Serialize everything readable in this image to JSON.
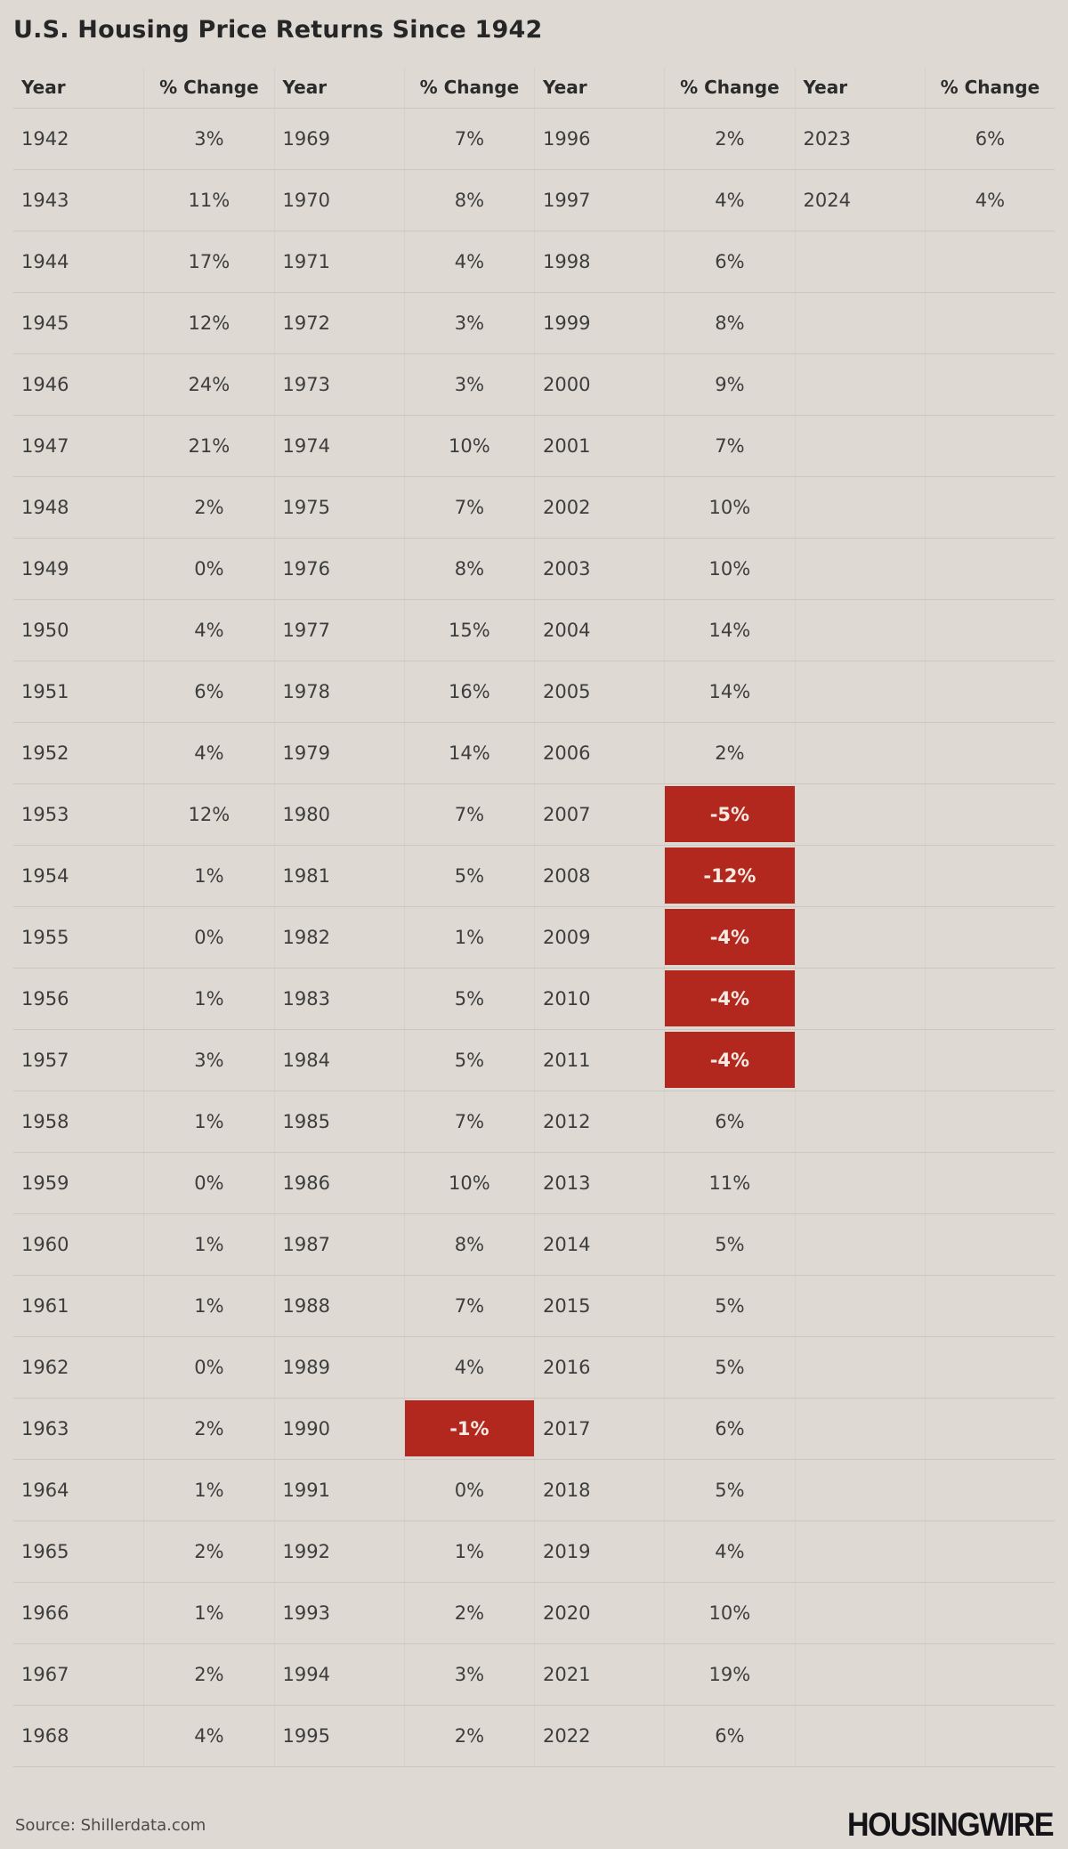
{
  "title": "U.S. Housing Price Returns Since 1942",
  "colors": {
    "background": "#dedad3",
    "negative_cell_bg": "#b2281e",
    "negative_cell_text": "#f6ebe4",
    "text": "#3d3d3d",
    "header_text": "#2b2b2b",
    "row_divider": "#cbc8c1",
    "column_divider": "#d5d2cb"
  },
  "footer": {
    "source": "Source: Shillerdata.com",
    "logo": "HOUSINGWIRE"
  },
  "chart_data": {
    "type": "table",
    "title": "U.S. Housing Price Returns Since 1942",
    "column_headers": [
      "Year",
      "% Change",
      "Year",
      "% Change",
      "Year",
      "% Change",
      "Year",
      "% Change"
    ],
    "negative_values_highlighted": true,
    "groups": [
      {
        "years": [
          1942,
          1943,
          1944,
          1945,
          1946,
          1947,
          1948,
          1949,
          1950,
          1951,
          1952,
          1953,
          1954,
          1955,
          1956,
          1957,
          1958,
          1959,
          1960,
          1961,
          1962,
          1963,
          1964,
          1965,
          1966,
          1967,
          1968
        ],
        "changes": [
          "3%",
          "11%",
          "17%",
          "12%",
          "24%",
          "21%",
          "2%",
          "0%",
          "4%",
          "6%",
          "4%",
          "12%",
          "1%",
          "0%",
          "1%",
          "3%",
          "1%",
          "0%",
          "1%",
          "1%",
          "0%",
          "2%",
          "1%",
          "2%",
          "1%",
          "2%",
          "4%"
        ]
      },
      {
        "years": [
          1969,
          1970,
          1971,
          1972,
          1973,
          1974,
          1975,
          1976,
          1977,
          1978,
          1979,
          1980,
          1981,
          1982,
          1983,
          1984,
          1985,
          1986,
          1987,
          1988,
          1989,
          1990,
          1991,
          1992,
          1993,
          1994,
          1995
        ],
        "changes": [
          "7%",
          "8%",
          "4%",
          "3%",
          "3%",
          "10%",
          "7%",
          "8%",
          "15%",
          "16%",
          "14%",
          "7%",
          "5%",
          "1%",
          "5%",
          "5%",
          "7%",
          "10%",
          "8%",
          "7%",
          "4%",
          "-1%",
          "0%",
          "1%",
          "2%",
          "3%",
          "2%"
        ]
      },
      {
        "years": [
          1996,
          1997,
          1998,
          1999,
          2000,
          2001,
          2002,
          2003,
          2004,
          2005,
          2006,
          2007,
          2008,
          2009,
          2010,
          2011,
          2012,
          2013,
          2014,
          2015,
          2016,
          2017,
          2018,
          2019,
          2020,
          2021,
          2022
        ],
        "changes": [
          "2%",
          "4%",
          "6%",
          "8%",
          "9%",
          "7%",
          "10%",
          "10%",
          "14%",
          "14%",
          "2%",
          "-5%",
          "-12%",
          "-4%",
          "-4%",
          "-4%",
          "6%",
          "11%",
          "5%",
          "5%",
          "5%",
          "6%",
          "5%",
          "4%",
          "10%",
          "19%",
          "6%"
        ]
      },
      {
        "years": [
          2023,
          2024
        ],
        "changes": [
          "6%",
          "4%"
        ]
      }
    ]
  }
}
